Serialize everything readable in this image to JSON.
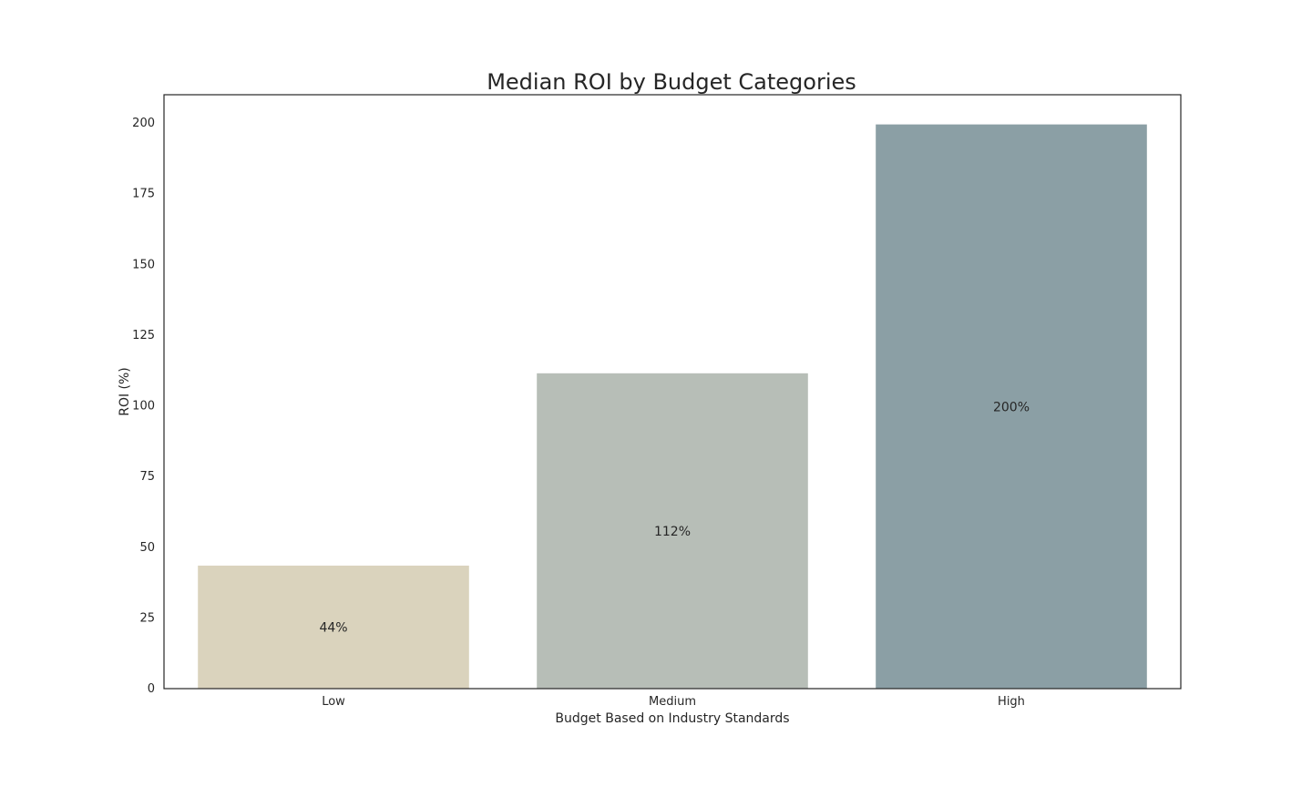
{
  "chart_data": {
    "type": "bar",
    "title": "Median ROI by Budget Categories",
    "xlabel": "Budget Based on Industry Standards",
    "ylabel": "ROI (%)",
    "categories": [
      "Low",
      "Medium",
      "High"
    ],
    "values": [
      43.5,
      111.5,
      199.5
    ],
    "data_labels": [
      "44%",
      "112%",
      "200%"
    ],
    "colors": [
      "#dad3bd",
      "#b7beb7",
      "#8b9fa5"
    ],
    "yticks": [
      "0",
      "25",
      "50",
      "75",
      "100",
      "125",
      "150",
      "175",
      "200"
    ],
    "ylim": [
      0,
      210
    ],
    "grid": false,
    "legend": "none"
  }
}
